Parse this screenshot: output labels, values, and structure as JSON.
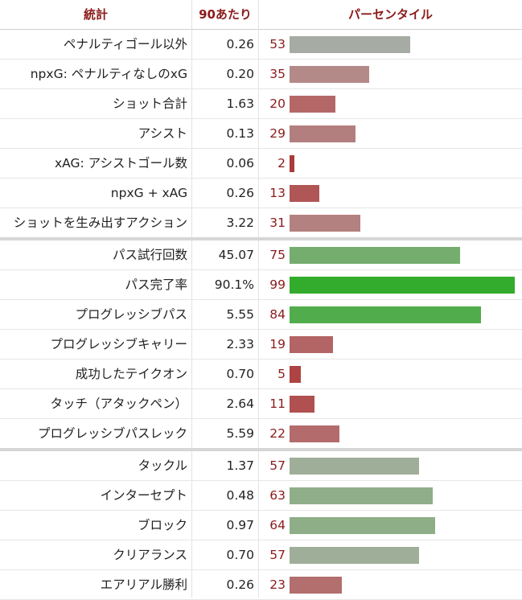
{
  "header": {
    "stat_label": "統計",
    "per90_label": "90あたり",
    "percentile_label": "パーセンタイル"
  },
  "colors": {
    "header_text": "#8b1a1a",
    "percentile_text": "#8b1a1a"
  },
  "groups": [
    {
      "rows": [
        {
          "stat": "ペナルティゴール以外",
          "per90": "0.26",
          "percentile": 53,
          "bar_color": "#a6aba3"
        },
        {
          "stat": "npxG: ペナルティなしのxG",
          "per90": "0.20",
          "percentile": 35,
          "bar_color": "#b48a89"
        },
        {
          "stat": "ショット合計",
          "per90": "1.63",
          "percentile": 20,
          "bar_color": "#b36867"
        },
        {
          "stat": "アシスト",
          "per90": "0.13",
          "percentile": 29,
          "bar_color": "#b27f7e"
        },
        {
          "stat": "xAG: アシストゴール数",
          "per90": "0.06",
          "percentile": 2,
          "bar_color": "#ad3a3a"
        },
        {
          "stat": "npxG + xAG",
          "per90": "0.26",
          "percentile": 13,
          "bar_color": "#b05656"
        },
        {
          "stat": "ショットを生み出すアクション",
          "per90": "3.22",
          "percentile": 31,
          "bar_color": "#b3817f"
        }
      ]
    },
    {
      "rows": [
        {
          "stat": "パス試行回数",
          "per90": "45.07",
          "percentile": 75,
          "bar_color": "#74ad6e"
        },
        {
          "stat": "パス完了率",
          "per90": "90.1%",
          "percentile": 99,
          "bar_color": "#33ac2d"
        },
        {
          "stat": "プログレッシブパス",
          "per90": "5.55",
          "percentile": 84,
          "bar_color": "#51ac4b"
        },
        {
          "stat": "プログレッシブキャリー",
          "per90": "2.33",
          "percentile": 19,
          "bar_color": "#b36464"
        },
        {
          "stat": "成功したテイクオン",
          "per90": "0.70",
          "percentile": 5,
          "bar_color": "#ae4343"
        },
        {
          "stat": "タッチ（アタックペン）",
          "per90": "2.64",
          "percentile": 11,
          "bar_color": "#b05050"
        },
        {
          "stat": "プログレッシブパスレック",
          "per90": "5.59",
          "percentile": 22,
          "bar_color": "#b36b6b"
        }
      ]
    },
    {
      "rows": [
        {
          "stat": "タックル",
          "per90": "1.37",
          "percentile": 57,
          "bar_color": "#9fae99"
        },
        {
          "stat": "インターセプト",
          "per90": "0.48",
          "percentile": 63,
          "bar_color": "#8fae89"
        },
        {
          "stat": "ブロック",
          "per90": "0.97",
          "percentile": 64,
          "bar_color": "#8dae87"
        },
        {
          "stat": "クリアランス",
          "per90": "0.70",
          "percentile": 57,
          "bar_color": "#9fae99"
        },
        {
          "stat": "エアリアル勝利",
          "per90": "0.26",
          "percentile": 23,
          "bar_color": "#b36e6e"
        }
      ]
    }
  ]
}
